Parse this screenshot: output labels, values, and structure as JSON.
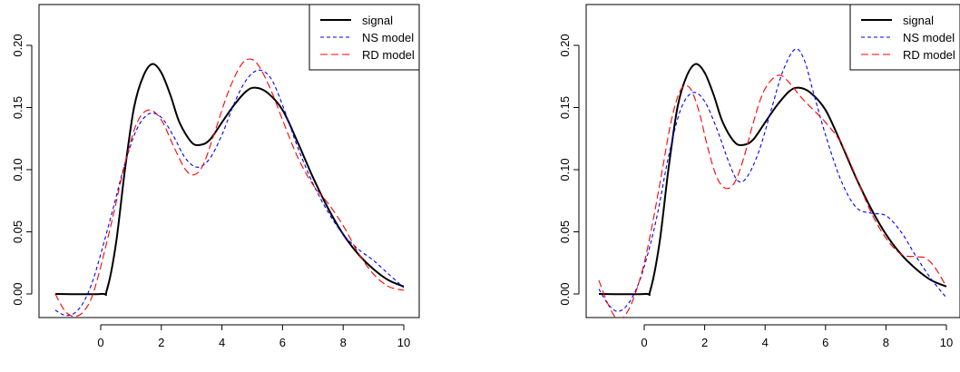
{
  "chart_data": [
    {
      "type": "line",
      "xlim": [
        -1.5,
        10.2
      ],
      "ylim": [
        -0.032,
        0.232
      ],
      "x_ticks": [
        "0",
        "2",
        "4",
        "6",
        "8",
        "10"
      ],
      "y_ticks": [
        "0.00",
        "0.05",
        "0.10",
        "0.15",
        "0.20"
      ],
      "grid": false,
      "legend_position": "top-right",
      "series": [
        {
          "name": "signal",
          "color": "#000000",
          "style": "solid",
          "x": [
            -1.5,
            0.0,
            0.2,
            0.5,
            0.8,
            1.1,
            1.4,
            1.7,
            2.0,
            2.3,
            2.6,
            3.0,
            3.3,
            3.6,
            4.0,
            4.4,
            4.8,
            5.1,
            5.5,
            6.0,
            6.5,
            7.0,
            7.5,
            8.0,
            8.5,
            9.0,
            9.5,
            10.0
          ],
          "y": [
            0.0,
            0.0,
            0.003,
            0.04,
            0.1,
            0.15,
            0.175,
            0.185,
            0.178,
            0.16,
            0.138,
            0.122,
            0.12,
            0.124,
            0.138,
            0.152,
            0.163,
            0.166,
            0.162,
            0.148,
            0.122,
            0.094,
            0.069,
            0.048,
            0.032,
            0.02,
            0.011,
            0.006
          ]
        },
        {
          "name": "NS model",
          "color": "#0000ff",
          "style": "dashed",
          "x": [
            -1.5,
            -1.2,
            -0.9,
            -0.6,
            -0.3,
            0.0,
            0.4,
            0.8,
            1.2,
            1.6,
            2.0,
            2.4,
            2.8,
            3.2,
            3.6,
            4.0,
            4.4,
            4.8,
            5.2,
            5.6,
            6.0,
            6.5,
            7.0,
            7.5,
            8.0,
            8.5,
            9.0,
            9.5,
            10.0
          ],
          "y": [
            -0.013,
            -0.017,
            -0.016,
            -0.008,
            0.008,
            0.032,
            0.068,
            0.105,
            0.133,
            0.145,
            0.142,
            0.127,
            0.109,
            0.102,
            0.109,
            0.128,
            0.153,
            0.172,
            0.18,
            0.174,
            0.152,
            0.118,
            0.089,
            0.066,
            0.048,
            0.036,
            0.027,
            0.016,
            0.005
          ]
        },
        {
          "name": "RD model",
          "color": "#ff0000",
          "style": "dashed",
          "x": [
            -1.5,
            -1.2,
            -0.9,
            -0.6,
            -0.3,
            0.0,
            0.4,
            0.8,
            1.2,
            1.6,
            2.0,
            2.4,
            2.8,
            3.1,
            3.4,
            3.8,
            4.2,
            4.6,
            4.9,
            5.2,
            5.6,
            6.0,
            6.5,
            7.0,
            7.5,
            8.0,
            8.5,
            9.0,
            9.5,
            10.0
          ],
          "y": [
            0.0,
            -0.013,
            -0.018,
            -0.015,
            -0.003,
            0.022,
            0.062,
            0.105,
            0.138,
            0.148,
            0.14,
            0.119,
            0.1,
            0.096,
            0.105,
            0.133,
            0.162,
            0.183,
            0.189,
            0.184,
            0.165,
            0.14,
            0.11,
            0.088,
            0.073,
            0.055,
            0.033,
            0.016,
            0.006,
            0.003
          ]
        }
      ]
    },
    {
      "type": "line",
      "xlim": [
        -1.5,
        10.2
      ],
      "ylim": [
        -0.032,
        0.232
      ],
      "x_ticks": [
        "0",
        "2",
        "4",
        "6",
        "8",
        "10"
      ],
      "y_ticks": [
        "0.00",
        "0.05",
        "0.10",
        "0.15",
        "0.20"
      ],
      "grid": false,
      "legend_position": "top-right",
      "series": [
        {
          "name": "signal",
          "color": "#000000",
          "style": "solid",
          "x": [
            -1.5,
            0.0,
            0.2,
            0.5,
            0.8,
            1.1,
            1.4,
            1.7,
            2.0,
            2.3,
            2.6,
            3.0,
            3.3,
            3.6,
            4.0,
            4.4,
            4.8,
            5.1,
            5.5,
            6.0,
            6.5,
            7.0,
            7.5,
            8.0,
            8.5,
            9.0,
            9.5,
            10.0
          ],
          "y": [
            0.0,
            0.0,
            0.003,
            0.04,
            0.1,
            0.15,
            0.175,
            0.185,
            0.178,
            0.16,
            0.138,
            0.122,
            0.12,
            0.124,
            0.138,
            0.152,
            0.163,
            0.166,
            0.162,
            0.148,
            0.122,
            0.094,
            0.069,
            0.048,
            0.032,
            0.02,
            0.011,
            0.006
          ]
        },
        {
          "name": "NS model",
          "color": "#0000ff",
          "style": "dashed",
          "x": [
            -1.5,
            -1.2,
            -0.9,
            -0.6,
            -0.3,
            0.0,
            0.4,
            0.8,
            1.2,
            1.6,
            2.0,
            2.4,
            2.8,
            3.1,
            3.4,
            3.8,
            4.2,
            4.6,
            5.0,
            5.3,
            5.6,
            6.0,
            6.5,
            7.0,
            7.5,
            8.0,
            8.5,
            9.0,
            9.5,
            10.0
          ],
          "y": [
            0.004,
            -0.008,
            -0.014,
            -0.01,
            0.002,
            0.022,
            0.06,
            0.11,
            0.148,
            0.162,
            0.155,
            0.133,
            0.106,
            0.091,
            0.094,
            0.115,
            0.148,
            0.18,
            0.197,
            0.188,
            0.162,
            0.128,
            0.092,
            0.07,
            0.065,
            0.063,
            0.05,
            0.03,
            0.012,
            -0.003
          ]
        },
        {
          "name": "RD model",
          "color": "#ff0000",
          "style": "dashed",
          "x": [
            -1.5,
            -1.2,
            -0.9,
            -0.6,
            -0.3,
            0.0,
            0.3,
            0.6,
            0.9,
            1.2,
            1.5,
            1.8,
            2.1,
            2.4,
            2.7,
            3.0,
            3.3,
            3.6,
            3.9,
            4.2,
            4.5,
            4.8,
            5.2,
            5.6,
            6.0,
            6.5,
            7.0,
            7.5,
            8.0,
            8.5,
            9.0,
            9.3,
            9.6,
            10.0
          ],
          "y": [
            0.011,
            -0.008,
            -0.02,
            -0.016,
            0.0,
            0.025,
            0.06,
            0.1,
            0.14,
            0.164,
            0.166,
            0.148,
            0.118,
            0.094,
            0.085,
            0.09,
            0.11,
            0.137,
            0.16,
            0.172,
            0.176,
            0.17,
            0.158,
            0.148,
            0.138,
            0.122,
            0.095,
            0.066,
            0.045,
            0.032,
            0.03,
            0.029,
            0.022,
            0.006
          ]
        }
      ]
    }
  ]
}
